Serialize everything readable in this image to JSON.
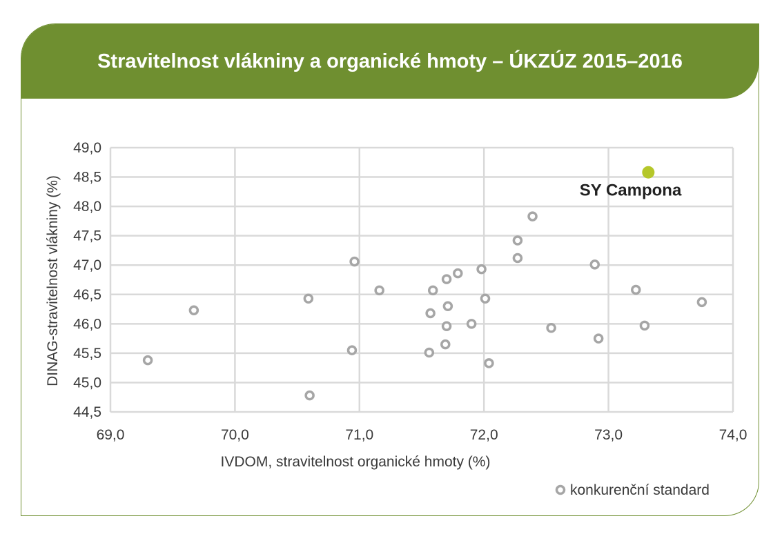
{
  "title": "Stravitelnost vlákniny a organické hmoty – ÚKZÚZ 2015–2016",
  "colors": {
    "brand_green": "#6f8f30",
    "highlight": "#b5c72a",
    "competitor": "#a6a6a6",
    "grid": "#d9d9d9"
  },
  "chart_data": {
    "type": "scatter",
    "title": "Stravitelnost vlákniny a organické hmoty – ÚKZÚZ 2015–2016",
    "xlabel": "IVDOM, stravitelnost organické hmoty (%)",
    "ylabel": "DINAG-stravitelnost vlákniny (%)",
    "xlim": [
      69.0,
      74.0
    ],
    "ylim": [
      44.5,
      49.0
    ],
    "x_ticks": [
      "69,0",
      "70,0",
      "71,0",
      "72,0",
      "73,0",
      "74,0"
    ],
    "y_ticks": [
      "44,5",
      "45,0",
      "45,5",
      "46,0",
      "46,5",
      "47,0",
      "47,5",
      "48,0",
      "48,5",
      "49,0"
    ],
    "grid": true,
    "legend_position": "bottom-right",
    "series": [
      {
        "name": "konkurenční standard",
        "marker": "hollow-circle",
        "points": [
          {
            "x": 69.3,
            "y": 45.38
          },
          {
            "x": 69.67,
            "y": 46.23
          },
          {
            "x": 70.59,
            "y": 46.43
          },
          {
            "x": 70.6,
            "y": 44.78
          },
          {
            "x": 70.94,
            "y": 45.55
          },
          {
            "x": 70.96,
            "y": 47.06
          },
          {
            "x": 71.16,
            "y": 46.57
          },
          {
            "x": 71.56,
            "y": 45.51
          },
          {
            "x": 71.57,
            "y": 46.18
          },
          {
            "x": 71.59,
            "y": 46.57
          },
          {
            "x": 71.69,
            "y": 45.65
          },
          {
            "x": 71.7,
            "y": 46.76
          },
          {
            "x": 71.7,
            "y": 45.96
          },
          {
            "x": 71.71,
            "y": 46.3
          },
          {
            "x": 71.79,
            "y": 46.86
          },
          {
            "x": 71.9,
            "y": 46.0
          },
          {
            "x": 71.98,
            "y": 46.93
          },
          {
            "x": 72.01,
            "y": 46.43
          },
          {
            "x": 72.04,
            "y": 45.33
          },
          {
            "x": 72.27,
            "y": 47.42
          },
          {
            "x": 72.27,
            "y": 47.12
          },
          {
            "x": 72.39,
            "y": 47.83
          },
          {
            "x": 72.54,
            "y": 45.93
          },
          {
            "x": 72.89,
            "y": 47.01
          },
          {
            "x": 72.92,
            "y": 45.75
          },
          {
            "x": 73.22,
            "y": 46.58
          },
          {
            "x": 73.29,
            "y": 45.97
          },
          {
            "x": 73.75,
            "y": 46.37
          }
        ]
      },
      {
        "marker": "filled-circle",
        "points": [
          {
            "x": 73.32,
            "y": 48.58,
            "label": "SY Campona"
          }
        ]
      }
    ]
  }
}
